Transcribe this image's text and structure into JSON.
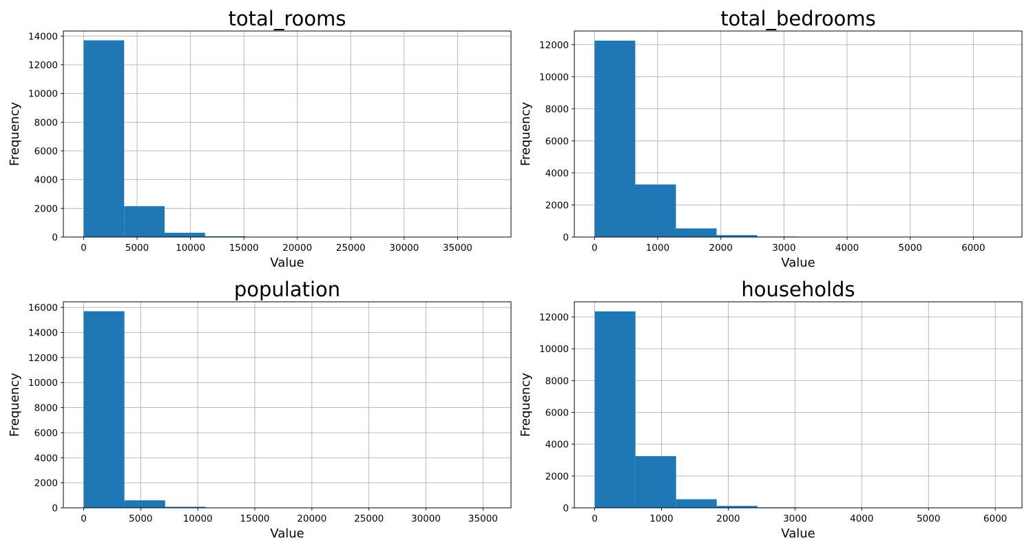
{
  "figure": {
    "bar_color": "#1f77b4",
    "grid_color": "#b0b0b0",
    "grid": true
  },
  "chart_data": [
    {
      "type": "bar",
      "title": "total_rooms",
      "xlabel": "Value",
      "ylabel": "Frequency",
      "xlim": [
        -1900,
        40000
      ],
      "ylim": [
        0,
        14350
      ],
      "xticks": [
        0,
        5000,
        10000,
        15000,
        20000,
        25000,
        30000,
        35000
      ],
      "yticks": [
        0,
        2000,
        4000,
        6000,
        8000,
        10000,
        12000,
        14000
      ],
      "bin_edges": [
        2,
        3789,
        7576,
        11363,
        15150,
        18937,
        22724,
        26511,
        30298,
        34085,
        37872
      ],
      "values": [
        13700,
        2150,
        300,
        50,
        20,
        5,
        3,
        2,
        1,
        1
      ]
    },
    {
      "type": "bar",
      "title": "total_bedrooms",
      "xlabel": "Value",
      "ylabel": "Frequency",
      "xlim": [
        -320,
        6770
      ],
      "ylim": [
        0,
        12850
      ],
      "xticks": [
        0,
        1000,
        2000,
        3000,
        4000,
        5000,
        6000
      ],
      "yticks": [
        0,
        2000,
        4000,
        6000,
        8000,
        10000,
        12000
      ],
      "bin_edges": [
        1,
        645,
        1289,
        1933,
        2577,
        3221,
        3865,
        4509,
        5153,
        5797,
        6445
      ],
      "values": [
        12250,
        3280,
        540,
        120,
        30,
        10,
        5,
        3,
        2,
        1
      ]
    },
    {
      "type": "bar",
      "title": "population",
      "xlabel": "Value",
      "ylabel": "Frequency",
      "xlim": [
        -1780,
        37450
      ],
      "ylim": [
        0,
        16450
      ],
      "xticks": [
        0,
        5000,
        10000,
        15000,
        20000,
        25000,
        30000,
        35000
      ],
      "yticks": [
        0,
        2000,
        4000,
        6000,
        8000,
        10000,
        12000,
        14000,
        16000
      ],
      "bin_edges": [
        3,
        3571,
        7139,
        10707,
        14275,
        17843,
        21411,
        24979,
        28547,
        32115,
        35682
      ],
      "values": [
        15700,
        600,
        80,
        20,
        5,
        2,
        1,
        1,
        0,
        1
      ]
    },
    {
      "type": "bar",
      "title": "households",
      "xlabel": "Value",
      "ylabel": "Frequency",
      "xlim": [
        -305,
        6400
      ],
      "ylim": [
        0,
        12950
      ],
      "xticks": [
        0,
        1000,
        2000,
        3000,
        4000,
        5000,
        6000
      ],
      "yticks": [
        0,
        2000,
        4000,
        6000,
        8000,
        10000,
        12000
      ],
      "bin_edges": [
        1,
        610,
        1219,
        1828,
        2437,
        3046,
        3655,
        4264,
        4873,
        5482,
        6082
      ],
      "values": [
        12350,
        3250,
        540,
        120,
        30,
        15,
        10,
        0,
        0,
        2
      ]
    }
  ]
}
